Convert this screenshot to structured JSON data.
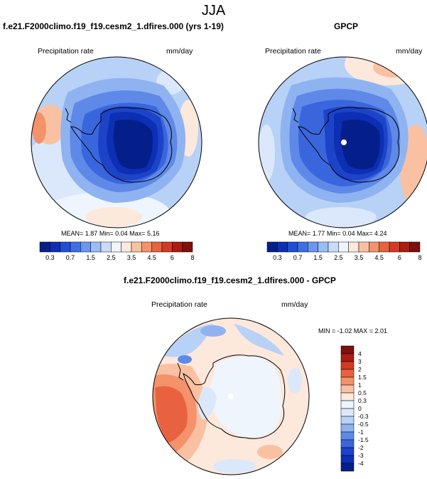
{
  "figure_title": "JJA",
  "panels": [
    {
      "id": "model",
      "title": "f.e21.F2000climo.f19_f19.cesm2_1.dfires.000 (yrs 1-19)",
      "left_label": "Precipitation rate",
      "right_label": "mm/day",
      "stats": {
        "mean_label": "MEAN=",
        "mean": "1.87",
        "min_label": "Min=",
        "min": "0.04",
        "max_label": "Max=",
        "max": "5.16"
      }
    },
    {
      "id": "obs",
      "title": "GPCP",
      "left_label": "Precipitation rate",
      "right_label": "mm/day",
      "stats": {
        "mean_label": "MEAN=",
        "mean": "1.77",
        "min_label": "Min=",
        "min": "0.04",
        "max_label": "Max=",
        "max": "4.24"
      }
    },
    {
      "id": "diff",
      "title": "f.e21.F2000climo.f19_f19.cesm2_1.dfires.000 - GPCP",
      "left_label": "Precipitation rate",
      "right_label": "mm/day",
      "stats_text": "MIN = -1.02 MAX = 2.01"
    }
  ],
  "colorbar_abs": {
    "tick_labels": [
      "0.3",
      "0.7",
      "1.5",
      "2.5",
      "3.5",
      "4.5",
      "6",
      "8"
    ],
    "colors": [
      "#051f8a",
      "#0d2fb6",
      "#1f4fd6",
      "#3d6fe4",
      "#6a96ee",
      "#9bbcf5",
      "#c8dcfa",
      "#eef5fd",
      "#fde8dc",
      "#f9c1a2",
      "#f3926b",
      "#e9623f",
      "#d33a22",
      "#ad1b12",
      "#7d0f0c"
    ]
  },
  "colorbar_diff": {
    "tick_labels": [
      "4",
      "3",
      "2",
      "1.5",
      "1",
      "0.5",
      "0.3",
      "0",
      "-0.3",
      "-0.5",
      "-1",
      "-1.5",
      "-2",
      "-3",
      "-4"
    ],
    "colors": [
      "#7d0f0c",
      "#ad1b12",
      "#d33a22",
      "#e9623f",
      "#f3926b",
      "#f9c1a2",
      "#fde8dc",
      "#eef5fd",
      "#dbe8fb",
      "#b8d1f7",
      "#8fb3f1",
      "#5f89e8",
      "#3a66dd",
      "#1c43c8",
      "#0d2fb6",
      "#051f8a"
    ]
  }
}
